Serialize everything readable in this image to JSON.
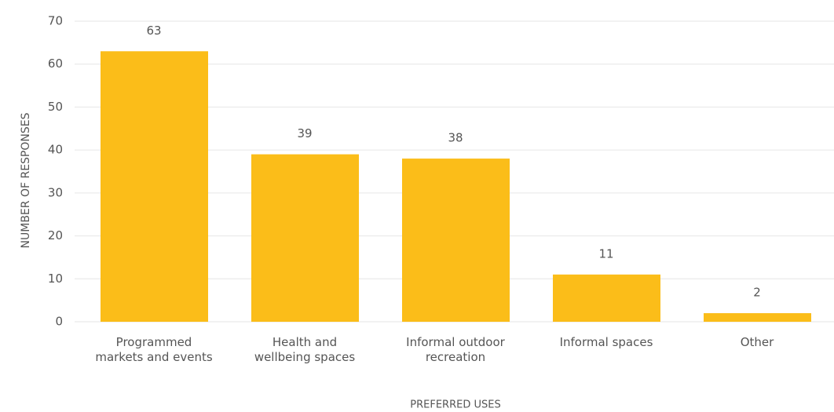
{
  "chart_data": {
    "type": "bar",
    "categories": [
      "Programmed\nmarkets and events",
      "Health and\nwellbeing spaces",
      "Informal outdoor\nrecreation",
      "Informal spaces",
      "Other"
    ],
    "values": [
      63,
      39,
      38,
      11,
      2
    ],
    "color": "#fbbd19",
    "x_label": "PREFERRED USES",
    "y_label": "NUMBER OF RESPONSES",
    "ylim": [
      0,
      70
    ],
    "yticks": [
      0,
      10,
      20,
      30,
      40,
      50,
      60,
      70
    ],
    "grid": true
  }
}
